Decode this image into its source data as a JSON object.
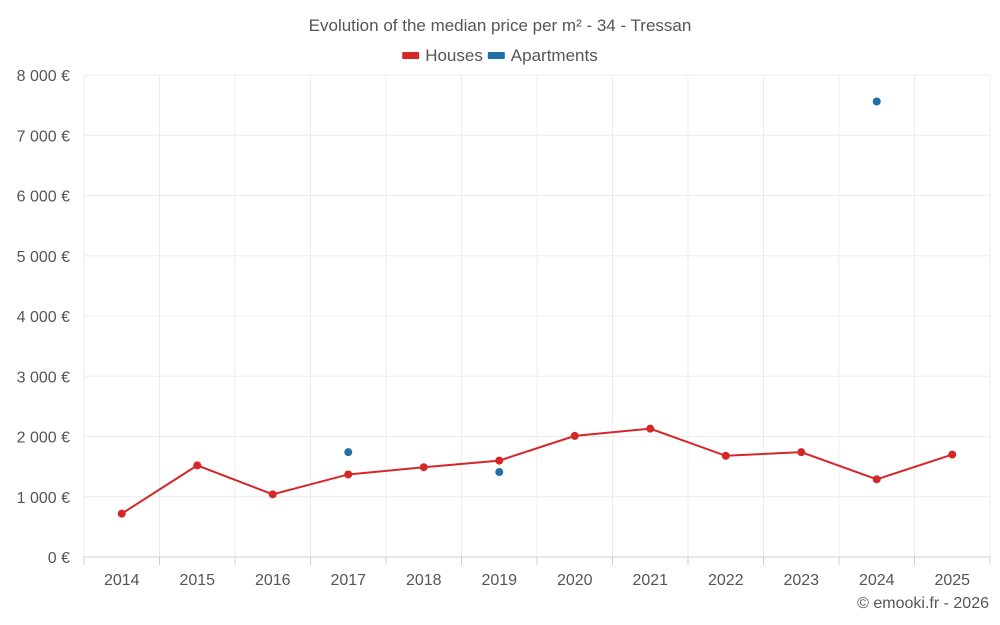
{
  "chart_data": {
    "type": "line",
    "title": "Evolution of the median price per m² - 34 - Tressan",
    "categories": [
      "2014",
      "2015",
      "2016",
      "2017",
      "2018",
      "2019",
      "2020",
      "2021",
      "2022",
      "2023",
      "2024",
      "2025"
    ],
    "y_ticks": [
      "0 €",
      "1 000 €",
      "2 000 €",
      "3 000 €",
      "4 000 €",
      "5 000 €",
      "6 000 €",
      "7 000 €",
      "8 000 €"
    ],
    "ylim": [
      0,
      8000
    ],
    "xlabel": "",
    "ylabel": "",
    "legend_position": "top-center",
    "series": [
      {
        "name": "Houses",
        "color": "#d62728",
        "connected": true,
        "values": [
          720,
          1520,
          1040,
          1370,
          1490,
          1600,
          2010,
          2130,
          1680,
          1740,
          1290,
          1700
        ]
      },
      {
        "name": "Apartments",
        "color": "#1f6fa8",
        "connected": false,
        "values": [
          null,
          null,
          null,
          1740,
          null,
          1410,
          null,
          null,
          null,
          null,
          7560,
          null
        ]
      }
    ]
  },
  "credit": "© emooki.fr - 2026"
}
